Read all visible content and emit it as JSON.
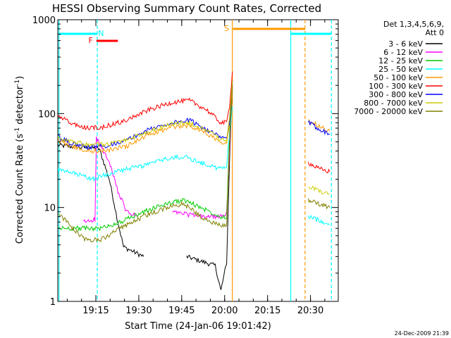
{
  "chart_data": {
    "type": "line",
    "title": "HESSI Observing Summary Count Rates, Corrected",
    "xlabel": "Start Time (24-Jan-06 19:01:42)",
    "ylabel_main": "Corrected Count Rate (s",
    "ylabel_exp1": "-1",
    "ylabel_mid": " detector",
    "ylabel_exp2": "-1",
    "ylabel_end": ")",
    "yscale": "log",
    "ylim": [
      1,
      1000
    ],
    "xlim_minutes_after_start": [
      0,
      98
    ],
    "xticks": [
      {
        "label": "19:15",
        "t": 13.3
      },
      {
        "label": "19:30",
        "t": 28.3
      },
      {
        "label": "19:45",
        "t": 43.3
      },
      {
        "label": "20:00",
        "t": 58.3
      },
      {
        "label": "20:15",
        "t": 73.3
      },
      {
        "label": "20:30",
        "t": 88.3
      }
    ],
    "yticks": [
      {
        "label": "1",
        "v": 1
      },
      {
        "label": "10",
        "v": 10
      },
      {
        "label": "100",
        "v": 100
      },
      {
        "label": "1000",
        "v": 1000
      }
    ],
    "legend_header": [
      "Det 1,3,4,5,6,9,",
      "Att 0"
    ],
    "legend_position": "top-right outside",
    "date_stamp": "24-Dec-2009 21:39",
    "series": [
      {
        "name": "3 - 6 keV",
        "color": "#000000",
        "points": [
          [
            0,
            46
          ],
          [
            6,
            44
          ],
          [
            13,
            43
          ],
          [
            14.5,
            42
          ],
          [
            18,
            20
          ],
          [
            21,
            7
          ],
          [
            23,
            3.8
          ],
          [
            30,
            3
          ],
          [
            45,
            3
          ],
          [
            55,
            2.4
          ],
          [
            57,
            1.3
          ],
          [
            59,
            2.6
          ],
          [
            60,
            30
          ],
          [
            61,
            220
          ]
        ]
      },
      {
        "name": "6 - 12 keV",
        "color": "#ff00ff",
        "points": [
          [
            9,
            7
          ],
          [
            13,
            7.5
          ],
          [
            13.5,
            55
          ],
          [
            15,
            45
          ],
          [
            18,
            30
          ],
          [
            21,
            15
          ],
          [
            24,
            9
          ],
          [
            28,
            8
          ],
          [
            40,
            9
          ],
          [
            50,
            8
          ],
          [
            58,
            8
          ],
          [
            59,
            9
          ],
          [
            60,
            40
          ],
          [
            61,
            230
          ]
        ]
      },
      {
        "name": "12 - 25 keV",
        "color": "#00cc00",
        "points": [
          [
            0,
            6
          ],
          [
            10,
            6
          ],
          [
            15,
            6
          ],
          [
            22,
            7
          ],
          [
            30,
            9
          ],
          [
            38,
            11
          ],
          [
            44,
            12
          ],
          [
            50,
            10
          ],
          [
            57,
            8
          ],
          [
            59,
            8
          ],
          [
            60,
            60
          ],
          [
            61,
            230
          ]
        ]
      },
      {
        "name": "25 - 50 keV",
        "color": "#00ffff",
        "points": [
          [
            0,
            25
          ],
          [
            6,
            23
          ],
          [
            12,
            20
          ],
          [
            14,
            21
          ],
          [
            20,
            24
          ],
          [
            30,
            28
          ],
          [
            38,
            33
          ],
          [
            44,
            35
          ],
          [
            50,
            30
          ],
          [
            56,
            26
          ],
          [
            59,
            27
          ],
          [
            60,
            60
          ],
          [
            61,
            120
          ],
          [
            87.5,
            8
          ],
          [
            93,
            7
          ],
          [
            95,
            6.5
          ]
        ]
      },
      {
        "name": "50 - 100 keV",
        "color": "#ff9900",
        "points": [
          [
            0,
            52
          ],
          [
            5,
            45
          ],
          [
            10,
            40
          ],
          [
            16,
            40
          ],
          [
            24,
            45
          ],
          [
            32,
            60
          ],
          [
            40,
            72
          ],
          [
            46,
            75
          ],
          [
            52,
            62
          ],
          [
            57,
            50
          ],
          [
            59,
            50
          ],
          [
            60,
            80
          ],
          [
            61,
            240
          ],
          [
            87.5,
            85
          ],
          [
            91,
            75
          ],
          [
            95,
            65
          ]
        ]
      },
      {
        "name": "100 - 300 keV",
        "color": "#ff0000",
        "points": [
          [
            0,
            95
          ],
          [
            5,
            78
          ],
          [
            10,
            70
          ],
          [
            16,
            72
          ],
          [
            24,
            85
          ],
          [
            32,
            110
          ],
          [
            40,
            132
          ],
          [
            46,
            138
          ],
          [
            52,
            110
          ],
          [
            57,
            80
          ],
          [
            59,
            80
          ],
          [
            60,
            120
          ],
          [
            61,
            280
          ],
          [
            87.5,
            30
          ],
          [
            91,
            26
          ],
          [
            95,
            24
          ]
        ]
      },
      {
        "name": "300 - 800 keV",
        "color": "#0000ff",
        "points": [
          [
            0,
            56
          ],
          [
            5,
            48
          ],
          [
            10,
            44
          ],
          [
            16,
            45
          ],
          [
            24,
            52
          ],
          [
            32,
            68
          ],
          [
            40,
            80
          ],
          [
            46,
            85
          ],
          [
            52,
            68
          ],
          [
            57,
            55
          ],
          [
            59,
            55
          ],
          [
            60,
            80
          ],
          [
            61,
            210
          ],
          [
            87.5,
            80
          ],
          [
            91,
            70
          ],
          [
            95,
            60
          ]
        ]
      },
      {
        "name": "800 - 7000 keV",
        "color": "#cccc00",
        "points": [
          [
            0,
            55
          ],
          [
            5,
            50
          ],
          [
            10,
            47
          ],
          [
            16,
            47
          ],
          [
            24,
            52
          ],
          [
            32,
            65
          ],
          [
            40,
            78
          ],
          [
            46,
            80
          ],
          [
            52,
            67
          ],
          [
            57,
            52
          ],
          [
            59,
            52
          ],
          [
            60,
            85
          ],
          [
            61,
            220
          ],
          [
            87.5,
            17
          ],
          [
            91,
            15
          ],
          [
            95,
            14
          ]
        ]
      },
      {
        "name": "7000 - 20000 keV",
        "color": "#808000",
        "points": [
          [
            0,
            9
          ],
          [
            5,
            6
          ],
          [
            10,
            4.5
          ],
          [
            15,
            4.5
          ],
          [
            22,
            6
          ],
          [
            30,
            8
          ],
          [
            38,
            10
          ],
          [
            44,
            11
          ],
          [
            50,
            8
          ],
          [
            56,
            6.5
          ],
          [
            59,
            6.5
          ],
          [
            60,
            50
          ],
          [
            61,
            200
          ],
          [
            87.5,
            12
          ],
          [
            91,
            11
          ],
          [
            95,
            10
          ]
        ]
      }
    ],
    "annotations": [
      {
        "label": "N",
        "color": "#00ffff",
        "t": 14.5
      },
      {
        "label": "F",
        "color": "#ff0000",
        "t": 11.5
      },
      {
        "label": "S",
        "color": "#ff9900",
        "t": 61.5
      }
    ]
  }
}
